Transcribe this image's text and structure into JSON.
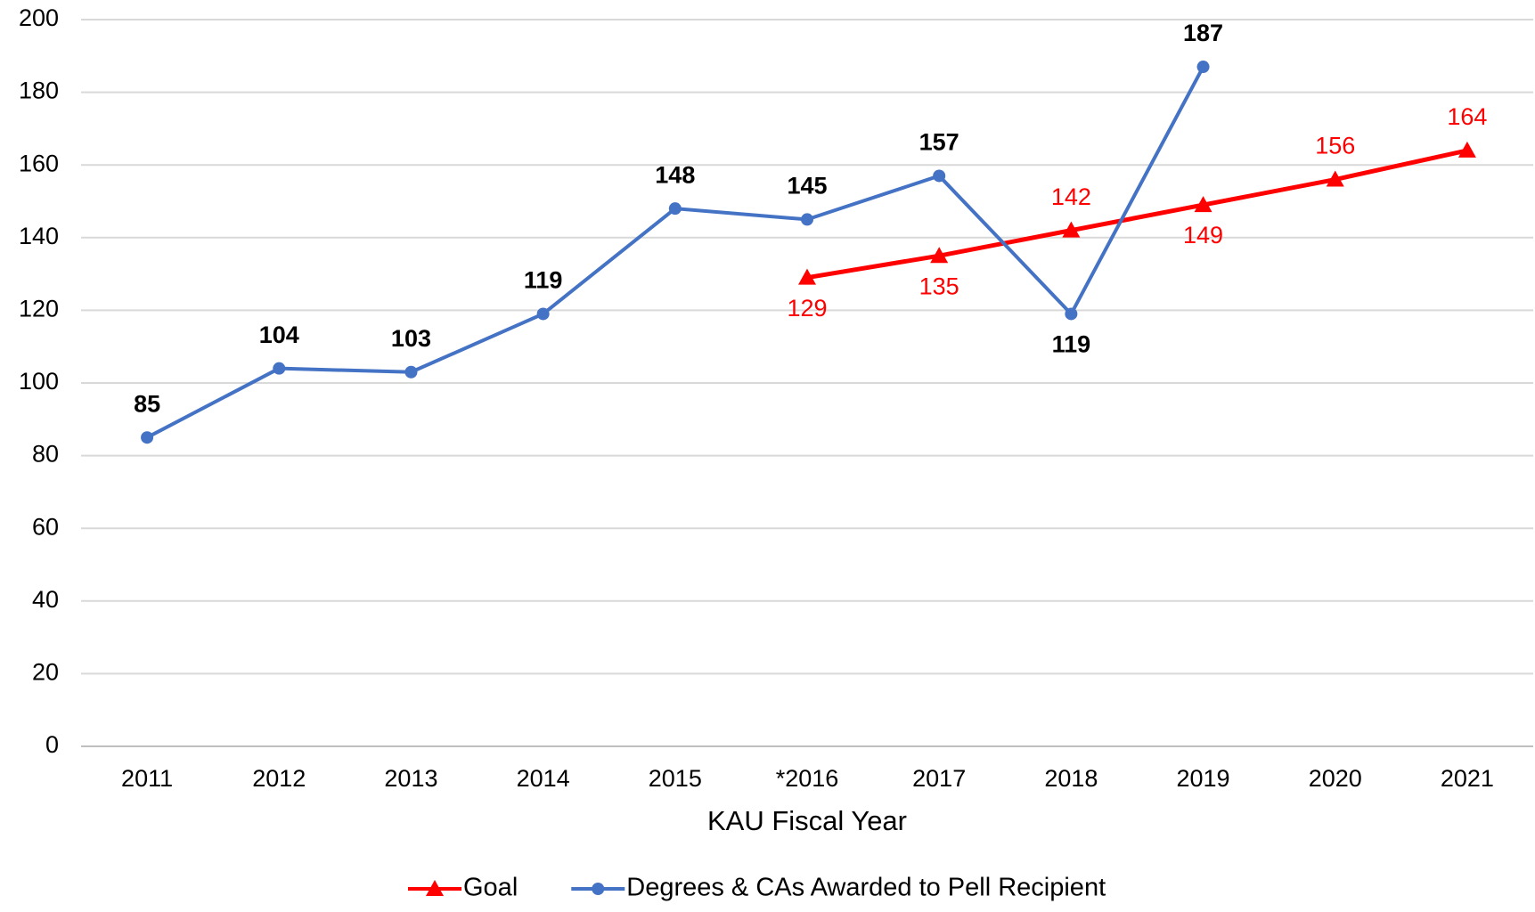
{
  "chart_data": {
    "type": "line",
    "categories": [
      "2011",
      "2012",
      "2013",
      "2014",
      "2015",
      "*2016",
      "2017",
      "2018",
      "2019",
      "2020",
      "2021"
    ],
    "x_label": "KAU Fiscal Year",
    "series": [
      {
        "name": "Goal",
        "color": "#ff0000",
        "marker": "triangle",
        "values": [
          null,
          null,
          null,
          null,
          null,
          129,
          135,
          142,
          149,
          156,
          164
        ]
      },
      {
        "name": "Degrees & CAs Awarded to Pell Recipient",
        "color": "#4472c4",
        "marker": "circle",
        "values": [
          85,
          104,
          103,
          119,
          148,
          145,
          157,
          119,
          187,
          null,
          null
        ]
      }
    ],
    "ylim": [
      0,
      200
    ],
    "yticks": [
      0,
      20,
      40,
      60,
      80,
      100,
      120,
      140,
      160,
      180,
      200
    ],
    "grid": true,
    "legend": "bottom"
  }
}
